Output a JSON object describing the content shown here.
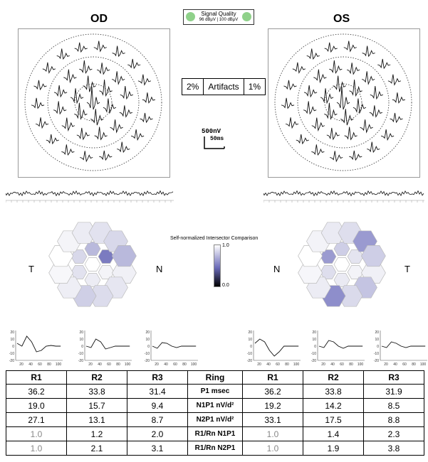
{
  "eyes": {
    "left": "OD",
    "right": "OS"
  },
  "signal_quality": {
    "title": "Signal Quality",
    "values": "96 dBμV | 100 dBμV",
    "color": "#8fd18a"
  },
  "artifacts": {
    "left": "2%",
    "label": "Artifacts",
    "right": "1%"
  },
  "scale": {
    "voltage": "500nV",
    "time": "50ms"
  },
  "heatmap": {
    "title": "Self-normalized Intersector Comparison",
    "scale_max": "1.0",
    "scale_min": "0.0",
    "od_left": "T",
    "od_right": "N",
    "os_left": "N",
    "os_right": "T"
  },
  "small_charts": {
    "y_ticks": [
      "20",
      "10",
      "0",
      "-10",
      "-20"
    ],
    "x_ticks": [
      "20",
      "40",
      "60",
      "80",
      "100"
    ]
  },
  "table": {
    "headers": [
      "R1",
      "R2",
      "R3",
      "Ring",
      "R1",
      "R2",
      "R3"
    ],
    "rows": [
      [
        "36.2",
        "33.8",
        "31.4",
        "P1 msec",
        "36.2",
        "33.8",
        "31.9"
      ],
      [
        "19.0",
        "15.7",
        "9.4",
        "N1P1 nV/d²",
        "19.2",
        "14.2",
        "8.5"
      ],
      [
        "27.1",
        "13.1",
        "8.7",
        "N2P1 nV/d²",
        "33.1",
        "17.5",
        "8.8"
      ],
      [
        "1.0",
        "1.2",
        "2.0",
        "R1/Rn N1P1",
        "1.0",
        "1.4",
        "2.3"
      ],
      [
        "1.0",
        "2.1",
        "3.1",
        "R1/Rn N2P1",
        "1.0",
        "1.9",
        "3.8"
      ]
    ]
  }
}
